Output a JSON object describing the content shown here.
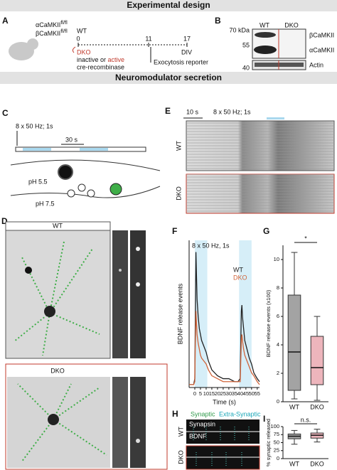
{
  "headers": [
    "Experimental design",
    "Neuromodulator secretion"
  ],
  "panel_labels": [
    "A",
    "B",
    "C",
    "D",
    "E",
    "F",
    "G",
    "H",
    "I"
  ],
  "panel_a": {
    "genes": [
      {
        "name": "αCaMKII",
        "allele": "fl/fl"
      },
      {
        "name": "βCaMKII",
        "allele": "fl/fl"
      }
    ],
    "timeline_ticks": [
      0,
      11,
      17
    ],
    "unit": "DIV",
    "groups": [
      "WT",
      "DKO"
    ],
    "treatment": [
      "inactive or",
      "active"
    ],
    "enzyme": "cre-recombinase",
    "reporter": "Exocytosis reporter"
  },
  "panel_b": {
    "lanes": [
      "WT",
      "DKO"
    ],
    "markers": [
      "70 kDa",
      "55",
      "40"
    ],
    "bands": [
      "βCaMKII",
      "αCaMKII",
      "Actin"
    ]
  },
  "panel_c": {
    "stimulus": "8 x 50 Hz; 1s",
    "scale": "30 s",
    "ph_inside": "pH 5.5",
    "ph_outside": "pH 7.5"
  },
  "panel_d": {
    "rows": [
      "WT",
      "DKO"
    ]
  },
  "panel_e": {
    "scale": "10 s",
    "stimulus": "8 x 50 Hz; 1s",
    "rows": [
      "WT",
      "DKO"
    ]
  },
  "panel_h": {
    "legend": [
      "Synaptic",
      "Extra-Synaptic"
    ],
    "stains": [
      "Synapsin",
      "BDNF"
    ],
    "rows": [
      "WT",
      "DKO"
    ]
  },
  "chart_data": [
    {
      "type": "line",
      "annotation": "8 x 50 Hz, 1s",
      "xlabel": "Time (s)",
      "ylabel": "BDNF release events",
      "xlim": [
        -5,
        57
      ],
      "xticks": [
        0,
        5,
        10,
        15,
        20,
        25,
        30,
        35,
        40,
        45,
        50,
        55
      ],
      "ylim": [
        0,
        5
      ],
      "stimulus_windows": [
        [
          0,
          11
        ],
        [
          39,
          50
        ]
      ],
      "x": [
        -5,
        -3,
        -1,
        0,
        0.5,
        1,
        1.5,
        2,
        3,
        4,
        5,
        6,
        8,
        10,
        12,
        15,
        20,
        25,
        30,
        35,
        38,
        40,
        40.5,
        41,
        41.5,
        42,
        43,
        44,
        46,
        48,
        50,
        52,
        55,
        57
      ],
      "series": [
        {
          "name": "WT",
          "color": "#222222",
          "values": [
            0.1,
            0.1,
            0.1,
            0.3,
            2.5,
            4.6,
            3.8,
            3.0,
            2.4,
            2.0,
            1.8,
            1.6,
            1.4,
            1.2,
            0.9,
            0.6,
            0.4,
            0.3,
            0.3,
            0.2,
            0.2,
            0.3,
            1.5,
            2.6,
            2.8,
            2.4,
            2.0,
            1.6,
            1.3,
            1.0,
            0.8,
            0.5,
            0.3,
            0.2
          ]
        },
        {
          "name": "DKO",
          "color": "#d0643a",
          "values": [
            0.1,
            0.1,
            0.1,
            0.2,
            1.5,
            2.6,
            2.2,
            1.8,
            1.5,
            1.3,
            1.1,
            1.0,
            0.9,
            0.8,
            0.6,
            0.4,
            0.3,
            0.2,
            0.2,
            0.2,
            0.2,
            0.2,
            0.9,
            1.6,
            1.8,
            1.6,
            1.3,
            1.1,
            0.9,
            0.7,
            0.5,
            0.4,
            0.2,
            0.1
          ]
        }
      ]
    },
    {
      "type": "box",
      "annotation": "*",
      "ylabel": "BDNF release events (x100)",
      "categories": [
        "WT",
        "DKO"
      ],
      "colors": [
        "#8c8c8c",
        "#e9a3ab"
      ],
      "ylim": [
        0,
        11
      ],
      "yticks": [
        0,
        2,
        4,
        6,
        8,
        10
      ],
      "boxes": [
        {
          "min": 0.2,
          "q1": 0.8,
          "median": 3.5,
          "q3": 7.5,
          "max": 10.5
        },
        {
          "min": 0.1,
          "q1": 1.2,
          "median": 2.4,
          "q3": 4.6,
          "max": 6.0
        }
      ]
    },
    {
      "type": "box",
      "annotation": "n.s.",
      "ylabel": "% synaptic released",
      "categories": [
        "WT",
        "DKO"
      ],
      "colors": [
        "#8c8c8c",
        "#e9a3ab"
      ],
      "ylim": [
        0,
        100
      ],
      "yticks": [
        0,
        25,
        50,
        75,
        100
      ],
      "boxes": [
        {
          "min": 45,
          "q1": 62,
          "median": 70,
          "q3": 77,
          "max": 88
        },
        {
          "min": 52,
          "q1": 64,
          "median": 73,
          "q3": 80,
          "max": 92
        }
      ]
    }
  ]
}
